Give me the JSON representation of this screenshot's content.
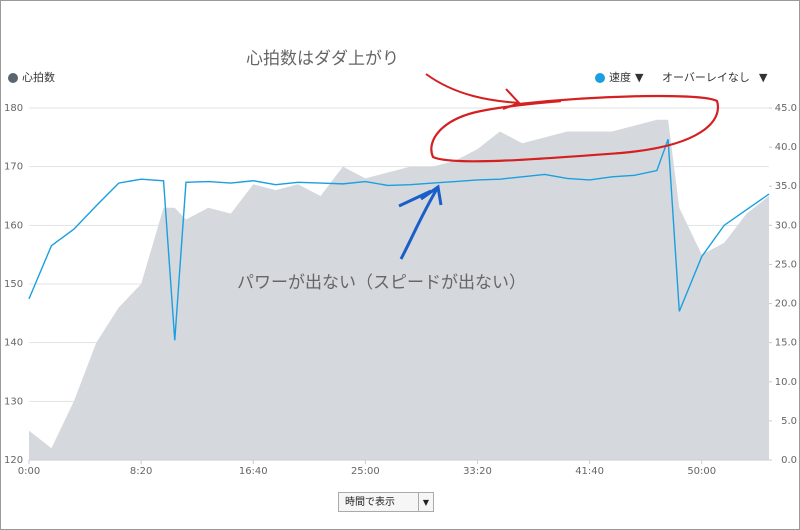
{
  "chart_data": {
    "type": "line",
    "x": [
      0,
      100,
      200,
      300,
      400,
      500,
      600,
      650,
      700,
      800,
      900,
      1000,
      1100,
      1200,
      1300,
      1400,
      1500,
      1600,
      1700,
      1800,
      1900,
      2000,
      2100,
      2200,
      2300,
      2400,
      2500,
      2600,
      2700,
      2800,
      2850,
      2900,
      3000,
      3100,
      3200,
      3300
    ],
    "series": [
      {
        "name": "心拍数",
        "color": "#d5d9de",
        "legend_color": "#5a6570",
        "style": "area",
        "values": [
          125,
          122,
          130,
          140,
          146,
          150,
          163,
          163,
          161,
          163,
          162,
          167,
          166,
          167,
          165,
          170,
          168,
          169,
          170,
          170,
          171,
          173,
          176,
          174,
          175,
          176,
          176,
          176,
          177,
          178,
          178,
          163,
          155,
          157,
          162,
          165
        ]
      },
      {
        "name": "速度",
        "color": "#1a9fe0",
        "style": "line",
        "axis": "y2",
        "values": [
          20.6,
          27.4,
          29.5,
          32.5,
          35.4,
          35.9,
          35.7,
          15.3,
          35.5,
          35.6,
          35.4,
          35.7,
          35.2,
          35.5,
          35.4,
          35.3,
          35.6,
          35.1,
          35.2,
          35.4,
          35.6,
          35.8,
          35.9,
          36.2,
          36.5,
          36.0,
          35.8,
          36.2,
          36.4,
          37.0,
          41.0,
          19.0,
          26.0,
          30.0,
          32.0,
          34.0
        ]
      }
    ],
    "xlim": [
      0,
      3300
    ],
    "xticks": [
      {
        "value": 0,
        "label": "0:00"
      },
      {
        "value": 500,
        "label": "8:20"
      },
      {
        "value": 1000,
        "label": "16:40"
      },
      {
        "value": 1500,
        "label": "25:00"
      },
      {
        "value": 2000,
        "label": "33:20"
      },
      {
        "value": 2500,
        "label": "41:40"
      },
      {
        "value": 3000,
        "label": "50:00"
      }
    ],
    "ylim": [
      120,
      180
    ],
    "yticks": [
      120,
      130,
      140,
      150,
      160,
      170,
      180
    ],
    "y2lim": [
      0,
      45
    ],
    "y2ticks": [
      {
        "value": 0,
        "label": "0.0"
      },
      {
        "value": 5,
        "label": "5.0"
      },
      {
        "value": 10,
        "label": "10.0"
      },
      {
        "value": 15,
        "label": "15.0"
      },
      {
        "value": 20,
        "label": "20.0"
      },
      {
        "value": 25,
        "label": "25.0"
      },
      {
        "value": 30,
        "label": "30.0"
      },
      {
        "value": 35,
        "label": "35.0"
      },
      {
        "value": 40,
        "label": "40.0"
      },
      {
        "value": 45,
        "label": "45.0"
      }
    ],
    "grid": true,
    "overlay_menu": "オーバーレイなし",
    "annotations": [
      {
        "text": "心拍数はダダ上がり",
        "color": "#d42020"
      },
      {
        "text": "パワーが出ない（スピードが出ない）",
        "color": "#1a5fc8"
      }
    ]
  },
  "view_select": "時間で表示"
}
